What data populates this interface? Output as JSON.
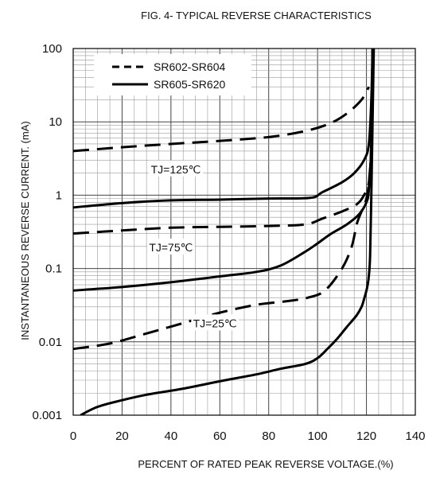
{
  "chart_data": {
    "type": "line",
    "title": "FIG. 4- TYPICAL REVERSE CHARACTERISTICS",
    "xlabel": "PERCENT OF RATED PEAK REVERSE VOLTAGE.(%)",
    "ylabel": "INSTANTANEOUS REVERSE CURRENT. (mA)",
    "xlim": [
      0,
      140
    ],
    "ylim": [
      0.001,
      100
    ],
    "yscale": "log",
    "grid": true,
    "legend_placement": "top-left",
    "x_ticks": [
      "0",
      "20",
      "40",
      "60",
      "80",
      "100",
      "120",
      "140"
    ],
    "y_ticks": [
      "0.001",
      "0.01",
      "0.1",
      "1",
      "10",
      "100"
    ],
    "legend": [
      {
        "label": "SR602-SR604",
        "style": "dashed"
      },
      {
        "label": "SR605-SR620",
        "style": "solid"
      }
    ],
    "annotations": [
      {
        "text": "TJ=125℃",
        "x": 42,
        "y": 2.2
      },
      {
        "text": "TJ=75℃",
        "x": 40,
        "y": 0.19
      },
      {
        "text": "TJ=25℃",
        "x": 58,
        "y": 0.0175
      }
    ],
    "series": [
      {
        "group": "TJ=125℃",
        "style": "dashed",
        "points": [
          [
            0,
            4.0
          ],
          [
            20,
            4.5
          ],
          [
            40,
            5.0
          ],
          [
            60,
            5.5
          ],
          [
            80,
            6.2
          ],
          [
            95,
            7.5
          ],
          [
            105,
            9.5
          ],
          [
            112,
            13
          ],
          [
            118,
            20
          ],
          [
            121,
            30
          ]
        ]
      },
      {
        "group": "TJ=125℃",
        "style": "solid",
        "points": [
          [
            0,
            0.68
          ],
          [
            20,
            0.78
          ],
          [
            40,
            0.85
          ],
          [
            60,
            0.87
          ],
          [
            80,
            0.9
          ],
          [
            97,
            0.92
          ],
          [
            102,
            1.1
          ],
          [
            110,
            1.5
          ],
          [
            115,
            2.0
          ],
          [
            119,
            3.0
          ],
          [
            121,
            5.0
          ],
          [
            122,
            20
          ],
          [
            122.5,
            100
          ]
        ]
      },
      {
        "group": "TJ=75℃",
        "style": "dashed",
        "points": [
          [
            0,
            0.3
          ],
          [
            20,
            0.33
          ],
          [
            40,
            0.36
          ],
          [
            60,
            0.37
          ],
          [
            80,
            0.38
          ],
          [
            95,
            0.4
          ],
          [
            102,
            0.48
          ],
          [
            110,
            0.6
          ],
          [
            116,
            0.75
          ],
          [
            119,
            1.0
          ],
          [
            121,
            1.5
          ],
          [
            122,
            5
          ],
          [
            122.5,
            100
          ]
        ]
      },
      {
        "group": "TJ=75℃",
        "style": "solid",
        "points": [
          [
            0,
            0.05
          ],
          [
            20,
            0.056
          ],
          [
            40,
            0.065
          ],
          [
            60,
            0.078
          ],
          [
            75,
            0.09
          ],
          [
            85,
            0.11
          ],
          [
            95,
            0.17
          ],
          [
            100,
            0.22
          ],
          [
            105,
            0.29
          ],
          [
            112,
            0.4
          ],
          [
            117,
            0.55
          ],
          [
            120,
            0.8
          ],
          [
            121,
            1.2
          ],
          [
            122,
            5
          ],
          [
            122.5,
            100
          ]
        ]
      },
      {
        "group": "TJ=25℃",
        "style": "dashed",
        "points": [
          [
            0,
            0.008
          ],
          [
            15,
            0.0095
          ],
          [
            30,
            0.013
          ],
          [
            45,
            0.018
          ],
          [
            60,
            0.025
          ],
          [
            75,
            0.032
          ],
          [
            88,
            0.036
          ],
          [
            96,
            0.04
          ],
          [
            103,
            0.05
          ],
          [
            110,
            0.1
          ],
          [
            114,
            0.2
          ],
          [
            116,
            0.4
          ],
          [
            118,
            0.6
          ],
          [
            120,
            0.9
          ],
          [
            121,
            1.5
          ],
          [
            122,
            5
          ],
          [
            122.5,
            100
          ]
        ]
      },
      {
        "group": "TJ=25℃",
        "style": "solid",
        "points": [
          [
            3,
            0.001
          ],
          [
            10,
            0.0013
          ],
          [
            20,
            0.0016
          ],
          [
            30,
            0.0019
          ],
          [
            45,
            0.0023
          ],
          [
            60,
            0.0029
          ],
          [
            75,
            0.0036
          ],
          [
            85,
            0.0043
          ],
          [
            95,
            0.005
          ],
          [
            100,
            0.006
          ],
          [
            104,
            0.008
          ],
          [
            108,
            0.011
          ],
          [
            112,
            0.016
          ],
          [
            116,
            0.023
          ],
          [
            118,
            0.03
          ],
          [
            119,
            0.038
          ],
          [
            120,
            0.05
          ],
          [
            120.5,
            0.06
          ],
          [
            121,
            0.08
          ],
          [
            121.5,
            0.15
          ],
          [
            122,
            1
          ],
          [
            122.5,
            10
          ],
          [
            123,
            100
          ]
        ]
      }
    ]
  }
}
